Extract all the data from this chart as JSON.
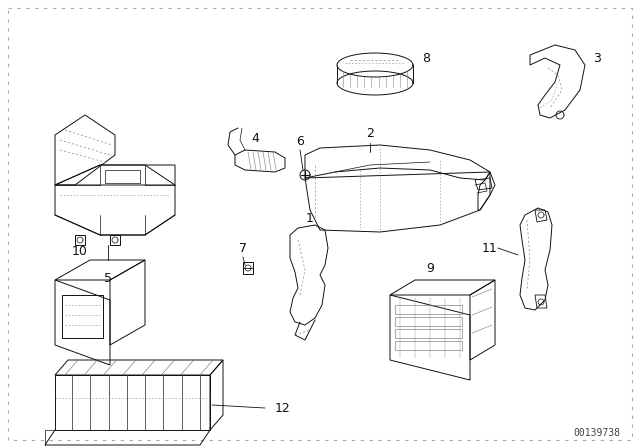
{
  "background_color": "#ffffff",
  "border_color": "#999999",
  "watermark_text": "00139738",
  "watermark_fontsize": 7,
  "watermark_color": "#444444",
  "figsize": [
    6.4,
    4.48
  ],
  "dpi": 100,
  "lc": "#111111",
  "lw": 0.7
}
